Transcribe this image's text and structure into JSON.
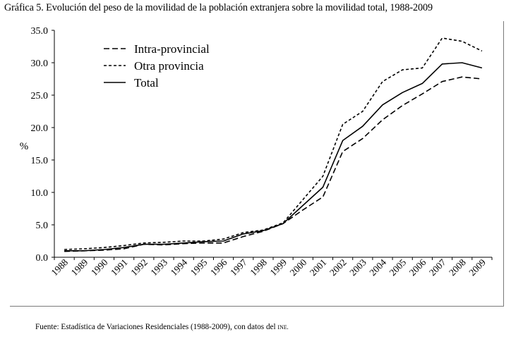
{
  "chart_data": {
    "type": "line",
    "title": "Gráfica 5. Evolución del peso de la movilidad de la población extranjera sobre la movilidad total, 1988-2009",
    "xlabel": "",
    "ylabel": "%",
    "ylim": [
      0,
      35
    ],
    "y_ticks": [
      "0.0",
      "5.0",
      "10.0",
      "15.0",
      "20.0",
      "25.0",
      "30.0",
      "35.0"
    ],
    "categories": [
      "1988",
      "1989",
      "1990",
      "1991",
      "1992",
      "1993",
      "1994",
      "1995",
      "1996",
      "1997",
      "1998",
      "1999",
      "2000",
      "2001",
      "2002",
      "2003",
      "2004",
      "2005",
      "2006",
      "2007",
      "2008",
      "2009"
    ],
    "grid": false,
    "legend_position": "top-left",
    "series": [
      {
        "name": "Intra-provincial",
        "dash": "long-dash",
        "values": [
          0.9,
          1.0,
          1.1,
          1.3,
          2.0,
          1.9,
          2.1,
          2.2,
          2.2,
          3.2,
          4.0,
          5.2,
          7.3,
          9.3,
          16.3,
          18.3,
          21.2,
          23.4,
          25.2,
          27.1,
          27.8,
          27.5
        ]
      },
      {
        "name": "Otra provincia",
        "dash": "short-dash",
        "values": [
          1.2,
          1.3,
          1.5,
          1.8,
          2.2,
          2.3,
          2.5,
          2.5,
          2.8,
          3.8,
          4.2,
          5.3,
          8.9,
          12.5,
          20.5,
          22.5,
          27.1,
          28.9,
          29.2,
          33.8,
          33.3,
          31.8
        ]
      },
      {
        "name": "Total",
        "dash": "solid",
        "values": [
          1.0,
          1.0,
          1.2,
          1.5,
          2.0,
          2.0,
          2.2,
          2.4,
          2.5,
          3.6,
          4.1,
          5.2,
          8.0,
          10.8,
          18.0,
          20.2,
          23.5,
          25.4,
          26.8,
          29.8,
          30.0,
          29.2
        ]
      }
    ]
  },
  "source_text": "Fuente: Estadística de Variaciones Residenciales (1988-2009), con datos del",
  "source_abbr": "INE."
}
